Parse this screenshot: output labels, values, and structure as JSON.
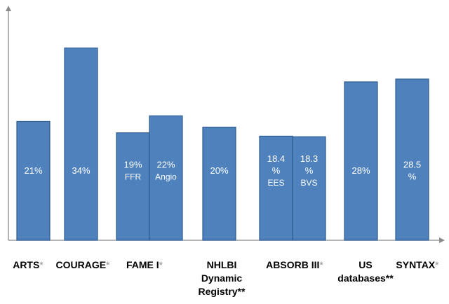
{
  "chart_data": {
    "type": "bar",
    "ylim": [
      0,
      40
    ],
    "grid": false,
    "legend": "none",
    "colors": {
      "bar": "#4f81bd",
      "bar_edge": "#2e5c8f",
      "axis": "#8a8a8a",
      "mark": "#8c8c8c"
    },
    "groups": [
      {
        "category": "ARTS",
        "mark": "*",
        "bars": [
          {
            "value": 21,
            "label": "21%"
          }
        ]
      },
      {
        "category": "COURAGE",
        "mark": "*",
        "bars": [
          {
            "value": 34,
            "label": "34%"
          }
        ]
      },
      {
        "category": "FAME I",
        "mark": "*",
        "bars": [
          {
            "value": 19,
            "label": "19%",
            "sublabel": "FFR"
          },
          {
            "value": 22,
            "label": "22%",
            "sublabel": "Angio"
          }
        ]
      },
      {
        "category": "NHLBI Dynamic Registry**",
        "mark": "",
        "bars": [
          {
            "value": 20,
            "label": "20%"
          }
        ]
      },
      {
        "category": "ABSORB III",
        "mark": "*",
        "bars": [
          {
            "value": 18.4,
            "label": "18.4 %",
            "sublabel": "EES"
          },
          {
            "value": 18.3,
            "label": "18.3 %",
            "sublabel": "BVS"
          }
        ]
      },
      {
        "category": "US databases**",
        "mark": "",
        "bars": [
          {
            "value": 28,
            "label": "28%"
          }
        ]
      },
      {
        "category": "SYNTAX",
        "mark": "*",
        "bars": [
          {
            "value": 28.5,
            "label": "28.5 %"
          }
        ]
      }
    ]
  }
}
